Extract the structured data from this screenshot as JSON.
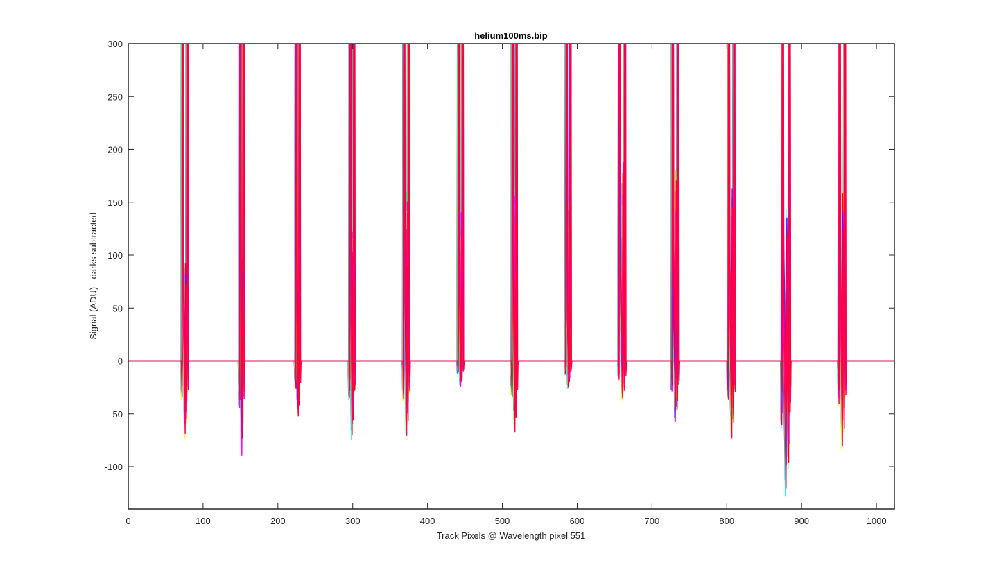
{
  "chart_data": {
    "type": "line",
    "title": "helium100ms.bip",
    "xlabel": "Track Pixels @ Wavelength pixel 551",
    "ylabel": "Signal (ADU) - darks subtracted",
    "xlim": [
      0,
      1024
    ],
    "ylim": [
      -140,
      300
    ],
    "xticks": [
      0,
      100,
      200,
      300,
      400,
      500,
      600,
      700,
      800,
      900,
      1000
    ],
    "yticks": [
      -100,
      -50,
      0,
      50,
      100,
      150,
      200,
      250,
      300
    ],
    "grid": false,
    "legend": "none",
    "baseline": {
      "y": 0,
      "style": "dashed",
      "color": "#d62728"
    },
    "series_colors": [
      "#0000ff",
      "#0080ff",
      "#00ffff",
      "#00ff80",
      "#80ff00",
      "#ffff00",
      "#ff8000",
      "#ff0000",
      "#ff00ff",
      "#8000ff",
      "#ff0080",
      "#ff0040"
    ],
    "peaks": [
      {
        "center": 75,
        "left": 72,
        "right": 79,
        "dip": -73,
        "spike": 92
      },
      {
        "center": 152,
        "left": 149,
        "right": 154,
        "dip": -89,
        "spike": 100
      },
      {
        "center": 226,
        "left": 224,
        "right": 229,
        "dip": -52,
        "spike": 85
      },
      {
        "center": 300,
        "left": 296,
        "right": 302,
        "dip": -74,
        "spike": 122
      },
      {
        "center": 371,
        "left": 368,
        "right": 375,
        "dip": -75,
        "spike": 159
      },
      {
        "center": 445,
        "left": 441,
        "right": 447,
        "dip": -24,
        "spike": 140
      },
      {
        "center": 516,
        "left": 513,
        "right": 519,
        "dip": -67,
        "spike": 165
      },
      {
        "center": 588,
        "left": 585,
        "right": 591,
        "dip": -26,
        "spike": 150
      },
      {
        "center": 660,
        "left": 656,
        "right": 664,
        "dip": -37,
        "spike": 188
      },
      {
        "center": 731,
        "left": 727,
        "right": 735,
        "dip": -57,
        "spike": 180
      },
      {
        "center": 806,
        "left": 802,
        "right": 810,
        "dip": -73,
        "spike": 163
      },
      {
        "center": 879,
        "left": 874,
        "right": 884,
        "dip": -128,
        "spike": 143
      },
      {
        "center": 954,
        "left": 950,
        "right": 958,
        "dip": -85,
        "spike": 158
      }
    ]
  }
}
